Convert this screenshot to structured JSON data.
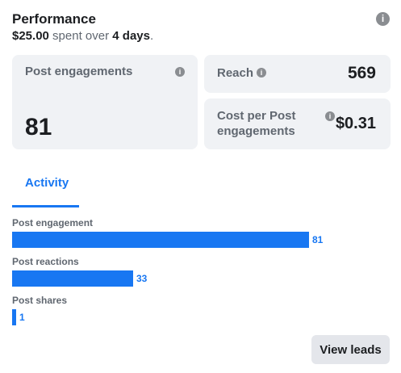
{
  "header": {
    "title": "Performance",
    "spent_amount": "$25.00",
    "spent_mid": " spent over ",
    "spent_days": "4 days",
    "spent_end": ".",
    "info_icon": "info-icon"
  },
  "metrics": {
    "post_engagements": {
      "label": "Post engagements",
      "value": "81"
    },
    "reach": {
      "label": "Reach",
      "value": "569"
    },
    "cost": {
      "label_line1": "Cost per Post",
      "label_line2": "engagements",
      "value": "$0.31"
    }
  },
  "tabs": [
    {
      "label": "Activity",
      "active": true
    }
  ],
  "activity": {
    "max": 81,
    "items": [
      {
        "label": "Post engagement",
        "value": 81
      },
      {
        "label": "Post reactions",
        "value": 33
      },
      {
        "label": "Post shares",
        "value": 1
      }
    ]
  },
  "actions": {
    "view_leads": "View leads"
  },
  "colors": {
    "accent": "#1877f2",
    "card_bg": "#f0f2f5",
    "button_bg": "#e4e6eb"
  }
}
